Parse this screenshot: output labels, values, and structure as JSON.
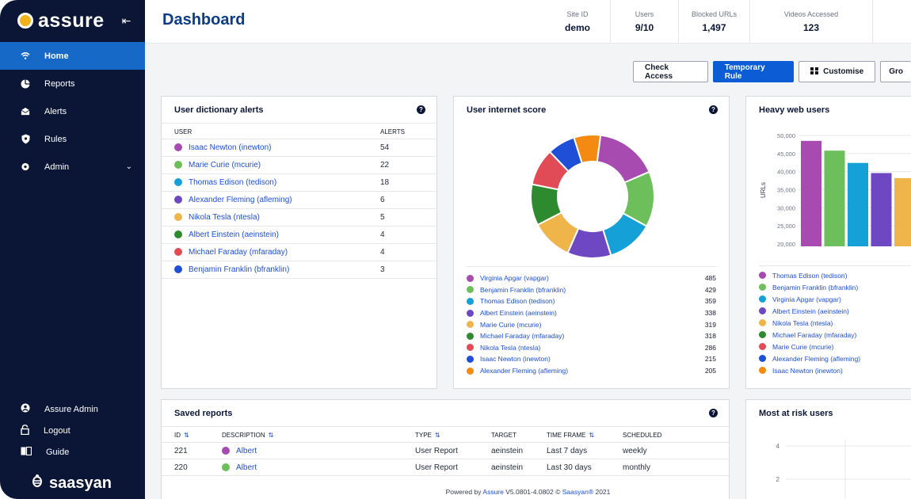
{
  "brand": {
    "name": "assure",
    "vendor": "saasyan"
  },
  "nav": [
    {
      "label": "Home",
      "icon": "wifi-icon",
      "active": true
    },
    {
      "label": "Reports",
      "icon": "pie-icon"
    },
    {
      "label": "Alerts",
      "icon": "envelope-icon"
    },
    {
      "label": "Rules",
      "icon": "shield-icon"
    },
    {
      "label": "Admin",
      "icon": "gear-icon"
    }
  ],
  "sidebar_bottom": [
    {
      "label": "Assure Admin",
      "icon": "user-icon"
    },
    {
      "label": "Logout",
      "icon": "lock-icon"
    },
    {
      "label": "Guide",
      "icon": "book-icon"
    }
  ],
  "header": {
    "title": "Dashboard",
    "stats": [
      {
        "label": "Site ID",
        "value": "demo"
      },
      {
        "label": "Users",
        "value": "9/10"
      },
      {
        "label": "Blocked URLs",
        "value": "1,497"
      },
      {
        "label": "Videos Accessed",
        "value": "123"
      }
    ]
  },
  "toolbar": {
    "check_access": "Check Access",
    "temporary_rule": "Temporary Rule",
    "customise": "Customise",
    "group": "Gro"
  },
  "dictionary_alerts": {
    "title": "User dictionary alerts",
    "col_user": "USER",
    "col_alerts": "ALERTS",
    "rows": [
      {
        "user": "Isaac Newton (inewton)",
        "alerts": "54",
        "color": "#a84bb0"
      },
      {
        "user": "Marie Curie (mcurie)",
        "alerts": "22",
        "color": "#6cbf5b"
      },
      {
        "user": "Thomas Edison (tedison)",
        "alerts": "18",
        "color": "#15a1d8"
      },
      {
        "user": "Alexander Fleming (afleming)",
        "alerts": "6",
        "color": "#6e47c2"
      },
      {
        "user": "Nikola Tesla (ntesla)",
        "alerts": "5",
        "color": "#efb54b"
      },
      {
        "user": "Albert Einstein (aeinstein)",
        "alerts": "4",
        "color": "#2e8a2e"
      },
      {
        "user": "Michael Faraday (mfaraday)",
        "alerts": "4",
        "color": "#e04b56"
      },
      {
        "user": "Benjamin Franklin (bfranklin)",
        "alerts": "3",
        "color": "#1f4fd6"
      }
    ]
  },
  "internet_score": {
    "title": "User internet score",
    "rows": [
      {
        "user": "Virginia Apgar (vapgar)",
        "value": "485",
        "color": "#a84bb0"
      },
      {
        "user": "Benjamin Franklin (bfranklin)",
        "value": "429",
        "color": "#6cbf5b"
      },
      {
        "user": "Thomas Edison (tedison)",
        "value": "359",
        "color": "#15a1d8"
      },
      {
        "user": "Albert Einstein (aeinstein)",
        "value": "338",
        "color": "#6e47c2"
      },
      {
        "user": "Marie Curie (mcurie)",
        "value": "319",
        "color": "#efb54b"
      },
      {
        "user": "Michael Faraday (mfaraday)",
        "value": "318",
        "color": "#2e8a2e"
      },
      {
        "user": "Nikola Tesla (ntesla)",
        "value": "286",
        "color": "#e04b56"
      },
      {
        "user": "Isaac Newton (inewton)",
        "value": "215",
        "color": "#1f4fd6"
      },
      {
        "user": "Alexander Fleming (afleming)",
        "value": "205",
        "color": "#f58a12"
      }
    ]
  },
  "heavy_web_users": {
    "title": "Heavy web users",
    "ylabel": "URLs",
    "yticks": [
      "50,000",
      "45,000",
      "40,000",
      "35,000",
      "30,000",
      "25,000",
      "20,000"
    ],
    "bars": [
      {
        "value": 48500,
        "color": "#a84bb0"
      },
      {
        "value": 45800,
        "color": "#6cbf5b"
      },
      {
        "value": 42400,
        "color": "#15a1d8"
      },
      {
        "value": 39600,
        "color": "#6e47c2"
      },
      {
        "value": 38200,
        "color": "#efb54b"
      }
    ],
    "legend": [
      {
        "user": "Thomas Edison (tedison)",
        "color": "#a84bb0"
      },
      {
        "user": "Benjamin Franklin (bfranklin)",
        "color": "#6cbf5b"
      },
      {
        "user": "Virginia Apgar (vapgar)",
        "color": "#15a1d8"
      },
      {
        "user": "Albert Einstein (aeinstein)",
        "color": "#6e47c2"
      },
      {
        "user": "Nikola Tesla (ntesla)",
        "color": "#efb54b"
      },
      {
        "user": "Michael Faraday (mfaraday)",
        "color": "#2e8a2e"
      },
      {
        "user": "Marie Curie (mcurie)",
        "color": "#e04b56"
      },
      {
        "user": "Alexander Fleming (afleming)",
        "color": "#1f4fd6"
      },
      {
        "user": "Isaac Newton (inewton)",
        "color": "#f58a12"
      }
    ]
  },
  "saved_reports": {
    "title": "Saved reports",
    "columns": [
      "ID",
      "DESCRIPTION",
      "TYPE",
      "TARGET",
      "TIME FRAME",
      "SCHEDULED"
    ],
    "rows": [
      {
        "id": "221",
        "description": "Albert",
        "color": "#a84bb0",
        "type": "User Report",
        "target": "aeinstein",
        "timeframe": "Last 7 days",
        "scheduled": "weekly"
      },
      {
        "id": "220",
        "description": "Albert",
        "color": "#6cbf5b",
        "type": "User Report",
        "target": "aeinstein",
        "timeframe": "Last 30 days",
        "scheduled": "monthly"
      }
    ]
  },
  "at_risk": {
    "title": "Most at risk users",
    "yticks": [
      "4",
      "2"
    ]
  },
  "footer": {
    "prefix": "Powered by",
    "product": "Assure",
    "version": "V5.0801-4.0802 ©",
    "company": "Saasyan®",
    "year": "2021"
  },
  "chart_data": [
    {
      "type": "pie",
      "title": "User internet score",
      "categories": [
        "Virginia Apgar (vapgar)",
        "Benjamin Franklin (bfranklin)",
        "Thomas Edison (tedison)",
        "Albert Einstein (aeinstein)",
        "Marie Curie (mcurie)",
        "Michael Faraday (mfaraday)",
        "Nikola Tesla (ntesla)",
        "Isaac Newton (inewton)",
        "Alexander Fleming (afleming)"
      ],
      "values": [
        485,
        429,
        359,
        338,
        319,
        318,
        286,
        215,
        205
      ]
    },
    {
      "type": "bar",
      "title": "Heavy web users",
      "ylabel": "URLs",
      "ylim": [
        20000,
        50000
      ],
      "values": [
        48500,
        45800,
        42400,
        39600,
        38200
      ]
    }
  ]
}
